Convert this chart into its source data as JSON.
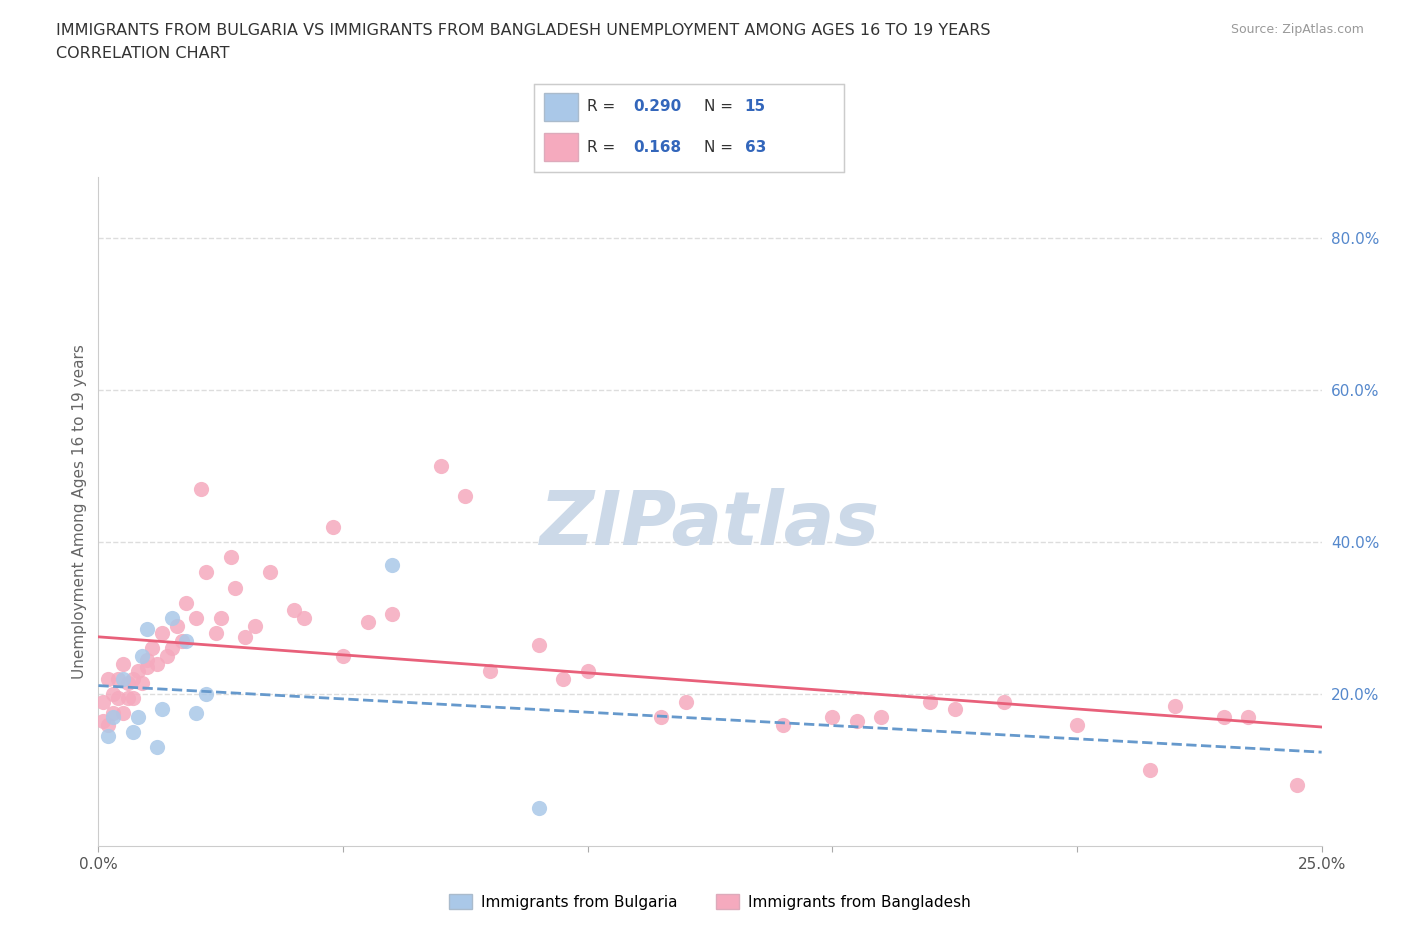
{
  "title_line1": "IMMIGRANTS FROM BULGARIA VS IMMIGRANTS FROM BANGLADESH UNEMPLOYMENT AMONG AGES 16 TO 19 YEARS",
  "title_line2": "CORRELATION CHART",
  "source_text": "Source: ZipAtlas.com",
  "ylabel": "Unemployment Among Ages 16 to 19 years",
  "xlim": [
    0.0,
    0.25
  ],
  "ylim": [
    0.0,
    0.88
  ],
  "xticks": [
    0.0,
    0.05,
    0.1,
    0.15,
    0.2,
    0.25
  ],
  "xtick_labels": [
    "0.0%",
    "",
    "",
    "",
    "",
    "25.0%"
  ],
  "ytick_values_right": [
    0.2,
    0.4,
    0.6,
    0.8
  ],
  "ytick_labels_right": [
    "20.0%",
    "40.0%",
    "60.0%",
    "80.0%"
  ],
  "bulgaria_color": "#aac8e8",
  "bangladesh_color": "#f5aabe",
  "bulgaria_line_color": "#6699cc",
  "bangladesh_line_color": "#e8607a",
  "watermark_text": "ZIPatlas",
  "watermark_color": "#ccd9e8",
  "legend_R_bulgaria": "0.290",
  "legend_N_bulgaria": "15",
  "legend_R_bangladesh": "0.168",
  "legend_N_bangladesh": "63",
  "bulgaria_scatter_x": [
    0.002,
    0.003,
    0.005,
    0.007,
    0.008,
    0.009,
    0.01,
    0.012,
    0.013,
    0.015,
    0.018,
    0.02,
    0.022,
    0.06,
    0.09
  ],
  "bulgaria_scatter_y": [
    0.145,
    0.17,
    0.22,
    0.15,
    0.17,
    0.25,
    0.285,
    0.13,
    0.18,
    0.3,
    0.27,
    0.175,
    0.2,
    0.37,
    0.05
  ],
  "bangladesh_scatter_x": [
    0.001,
    0.001,
    0.002,
    0.002,
    0.003,
    0.003,
    0.004,
    0.004,
    0.005,
    0.005,
    0.006,
    0.006,
    0.007,
    0.007,
    0.008,
    0.009,
    0.01,
    0.01,
    0.011,
    0.012,
    0.013,
    0.014,
    0.015,
    0.016,
    0.017,
    0.018,
    0.02,
    0.021,
    0.022,
    0.024,
    0.025,
    0.027,
    0.028,
    0.03,
    0.032,
    0.035,
    0.04,
    0.042,
    0.048,
    0.05,
    0.055,
    0.06,
    0.07,
    0.075,
    0.08,
    0.09,
    0.095,
    0.1,
    0.115,
    0.12,
    0.14,
    0.15,
    0.155,
    0.16,
    0.17,
    0.175,
    0.185,
    0.2,
    0.215,
    0.22,
    0.23,
    0.235,
    0.245
  ],
  "bangladesh_scatter_y": [
    0.165,
    0.19,
    0.22,
    0.16,
    0.2,
    0.175,
    0.22,
    0.195,
    0.24,
    0.175,
    0.195,
    0.215,
    0.22,
    0.195,
    0.23,
    0.215,
    0.245,
    0.235,
    0.26,
    0.24,
    0.28,
    0.25,
    0.26,
    0.29,
    0.27,
    0.32,
    0.3,
    0.47,
    0.36,
    0.28,
    0.3,
    0.38,
    0.34,
    0.275,
    0.29,
    0.36,
    0.31,
    0.3,
    0.42,
    0.25,
    0.295,
    0.305,
    0.5,
    0.46,
    0.23,
    0.265,
    0.22,
    0.23,
    0.17,
    0.19,
    0.16,
    0.17,
    0.165,
    0.17,
    0.19,
    0.18,
    0.19,
    0.16,
    0.1,
    0.185,
    0.17,
    0.17,
    0.08
  ],
  "background_color": "#ffffff",
  "grid_color": "#dddddd"
}
